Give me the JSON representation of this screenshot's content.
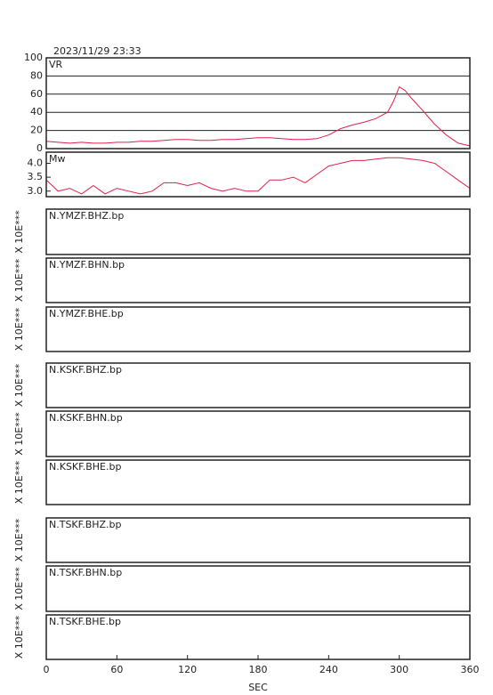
{
  "chart_data": [
    {
      "type": "line",
      "title": "2023/11/29 23:33",
      "x": [
        0,
        10,
        20,
        30,
        40,
        50,
        60,
        70,
        80,
        90,
        100,
        110,
        120,
        130,
        140,
        150,
        160,
        170,
        180,
        190,
        200,
        210,
        220,
        230,
        240,
        250,
        260,
        270,
        280,
        290,
        295,
        300,
        305,
        310,
        320,
        330,
        340,
        350,
        360
      ],
      "series": [
        {
          "name": "VR",
          "color": "#e0204a",
          "values": [
            8,
            7,
            6,
            7,
            6,
            6,
            7,
            7,
            8,
            8,
            9,
            10,
            10,
            9,
            9,
            10,
            10,
            11,
            12,
            12,
            11,
            10,
            10,
            11,
            15,
            22,
            26,
            29,
            33,
            40,
            52,
            68,
            64,
            56,
            42,
            27,
            15,
            6,
            3
          ]
        }
      ],
      "xlim": [
        0,
        360
      ],
      "ylim": [
        0,
        100
      ],
      "yticks": [
        0,
        20,
        40,
        60,
        80,
        100
      ],
      "grid": true
    },
    {
      "type": "line",
      "x": [
        0,
        10,
        20,
        30,
        40,
        50,
        60,
        70,
        80,
        90,
        100,
        110,
        120,
        130,
        140,
        150,
        160,
        170,
        180,
        190,
        200,
        210,
        220,
        230,
        240,
        250,
        260,
        270,
        280,
        290,
        300,
        310,
        320,
        330,
        340,
        350,
        360
      ],
      "series": [
        {
          "name": "Mw",
          "color": "#e0204a",
          "values": [
            3.4,
            3.0,
            3.1,
            2.9,
            3.2,
            2.9,
            3.1,
            3.0,
            2.9,
            3.0,
            3.3,
            3.3,
            3.2,
            3.3,
            3.1,
            3.0,
            3.1,
            3.0,
            3.0,
            3.4,
            3.4,
            3.5,
            3.3,
            3.6,
            3.9,
            4.0,
            4.1,
            4.1,
            4.15,
            4.2,
            4.2,
            4.15,
            4.1,
            4.0,
            3.7,
            3.4,
            3.1
          ]
        }
      ],
      "xlim": [
        0,
        360
      ],
      "ylim": [
        2.8,
        4.4
      ],
      "yticks": [
        {
          "value": 3,
          "label": "3.0"
        },
        3.5,
        {
          "value": 4,
          "label": "4.0"
        }
      ],
      "grid": false
    },
    {
      "type": "line",
      "label": "N.YMZF.BHZ.bp",
      "ylabel": "X 10E***"
    },
    {
      "type": "line",
      "label": "N.YMZF.BHN.bp",
      "ylabel": "X 10E***"
    },
    {
      "type": "line",
      "label": "N.YMZF.BHE.bp",
      "ylabel": "X 10E***"
    },
    {
      "type": "line",
      "label": "N.KSKF.BHZ.bp",
      "ylabel": "X 10E***"
    },
    {
      "type": "line",
      "label": "N.KSKF.BHN.bp",
      "ylabel": "X 10E***"
    },
    {
      "type": "line",
      "label": "N.KSKF.BHE.bp",
      "ylabel": "X 10E***"
    },
    {
      "type": "line",
      "label": "N.TSKF.BHZ.bp",
      "ylabel": "X 10E***"
    },
    {
      "type": "line",
      "label": "N.TSKF.BHN.bp",
      "ylabel": "X 10E***"
    },
    {
      "type": "line",
      "label": "N.TSKF.BHE.bp",
      "ylabel": "X 10E***",
      "xlim": [
        0,
        360
      ],
      "xticks": [
        0,
        60,
        120,
        180,
        240,
        300,
        360
      ],
      "xlabel": "SEC"
    }
  ]
}
